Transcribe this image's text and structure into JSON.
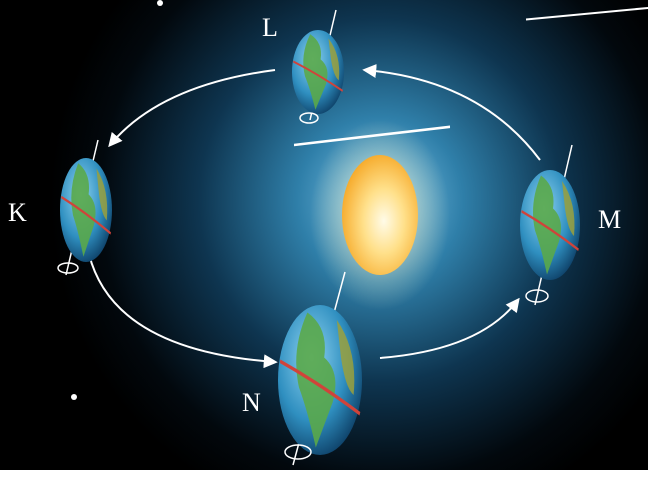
{
  "nodes": [
    {
      "label": "L"
    },
    {
      "label": "K"
    },
    {
      "label": "M"
    },
    {
      "label": "N"
    }
  ]
}
